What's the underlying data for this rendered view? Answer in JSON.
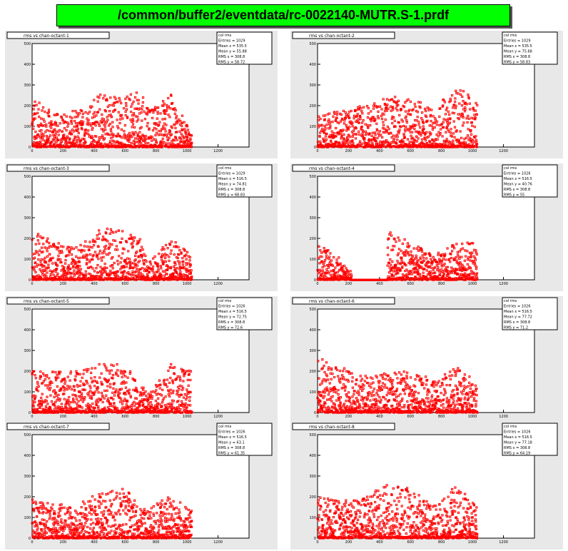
{
  "page": {
    "title": "/common/buffer2/eventdata/rc-0022140-MUTR.S-1.prdf"
  },
  "chart_data": [
    {
      "type": "scatter",
      "title": "rms vs chan-octant-1",
      "xlim": [
        0,
        1400
      ],
      "ylim": [
        0,
        500
      ],
      "x_ticks": [
        0,
        200,
        400,
        600,
        800,
        1000,
        1200
      ],
      "y_ticks": [
        0,
        100,
        200,
        300,
        400,
        500
      ],
      "stats": [
        "col rms",
        "Entries = 1029",
        "Mean x = 535.5",
        "Mean y = 55.88",
        "RMS x = 308.8",
        "RMS y = 58.72"
      ],
      "series": [
        {
          "x_range": [
            0,
            1030
          ],
          "max_y": 340,
          "profile": [
            [
              0,
              240
            ],
            [
              150,
              160
            ],
            [
              300,
              180
            ],
            [
              450,
              280
            ],
            [
              600,
              240
            ],
            [
              700,
              280
            ],
            [
              750,
              180
            ],
            [
              900,
              260
            ],
            [
              1030,
              60
            ]
          ],
          "zero_gaps": []
        }
      ]
    },
    {
      "type": "scatter",
      "title": "rms vs chan-octant-2",
      "xlim": [
        0,
        1400
      ],
      "ylim": [
        0,
        500
      ],
      "x_ticks": [
        0,
        200,
        400,
        600,
        800,
        1000,
        1200
      ],
      "y_ticks": [
        0,
        100,
        200,
        300,
        400,
        500
      ],
      "stats": [
        "col rms",
        "Entries = 1029",
        "Mean x = 535.5",
        "Mean y = 75.68",
        "RMS x = 308.8",
        "RMS y = 58.83"
      ],
      "series": [
        {
          "x_range": [
            0,
            1030
          ],
          "max_y": 335,
          "profile": [
            [
              0,
              160
            ],
            [
              150,
              180
            ],
            [
              300,
              200
            ],
            [
              450,
              250
            ],
            [
              600,
              230
            ],
            [
              750,
              200
            ],
            [
              900,
              280
            ],
            [
              1030,
              250
            ]
          ],
          "zero_gaps": []
        }
      ]
    },
    {
      "type": "scatter",
      "title": "rms vs chan-octant-3",
      "xlim": [
        0,
        1400
      ],
      "ylim": [
        0,
        500
      ],
      "x_ticks": [
        0,
        200,
        400,
        600,
        800,
        1000,
        1200
      ],
      "y_ticks": [
        0,
        100,
        200,
        300,
        400,
        500
      ],
      "stats": [
        "col rms",
        "Entries = 1029",
        "Mean x = 516.5",
        "Mean y = 74.81",
        "RMS x = 308.8",
        "RMS y = 68.83"
      ],
      "series": [
        {
          "x_range": [
            0,
            1030
          ],
          "max_y": 295,
          "profile": [
            [
              0,
              250
            ],
            [
              150,
              180
            ],
            [
              300,
              160
            ],
            [
              450,
              260
            ],
            [
              600,
              240
            ],
            [
              700,
              200
            ],
            [
              750,
              90
            ],
            [
              900,
              200
            ],
            [
              1030,
              120
            ]
          ],
          "zero_gaps": []
        }
      ]
    },
    {
      "type": "scatter",
      "title": "rms vs chan-octant-4",
      "xlim": [
        0,
        1400
      ],
      "ylim": [
        0,
        500
      ],
      "x_ticks": [
        0,
        200,
        400,
        600,
        800,
        1000,
        1200
      ],
      "y_ticks": [
        0,
        100,
        200,
        300,
        400,
        500
      ],
      "stats": [
        "col rms",
        "Entries = 1026",
        "Mean x = 516.5",
        "Mean y = 40.76",
        "RMS x = 308.8",
        "RMS y = 55"
      ],
      "series": [
        {
          "x_range": [
            0,
            1030
          ],
          "max_y": 265,
          "profile": [
            [
              0,
              200
            ],
            [
              150,
              100
            ],
            [
              200,
              40
            ],
            [
              450,
              240
            ],
            [
              600,
              180
            ],
            [
              750,
              120
            ],
            [
              900,
              180
            ],
            [
              1030,
              180
            ]
          ],
          "zero_gaps": [
            [
              220,
              450
            ]
          ]
        }
      ]
    },
    {
      "type": "scatter",
      "title": "rms vs chan-octant-5",
      "xlim": [
        0,
        1400
      ],
      "ylim": [
        0,
        500
      ],
      "x_ticks": [
        0,
        200,
        400,
        600,
        800,
        1000,
        1200
      ],
      "y_ticks": [
        0,
        100,
        200,
        300,
        400,
        500
      ],
      "stats": [
        "col rms",
        "Entries = 1026",
        "Mean x = 516.5",
        "Mean y = 72.75",
        "RMS x = 308.8",
        "RMS y = 72.6"
      ],
      "series": [
        {
          "x_range": [
            0,
            1030
          ],
          "max_y": 280,
          "profile": [
            [
              0,
              200
            ],
            [
              150,
              200
            ],
            [
              300,
              200
            ],
            [
              450,
              240
            ],
            [
              600,
              240
            ],
            [
              750,
              90
            ],
            [
              900,
              240
            ],
            [
              1030,
              200
            ]
          ],
          "zero_gaps": []
        }
      ]
    },
    {
      "type": "scatter",
      "title": "rms vs chan-octant-6",
      "xlim": [
        0,
        1400
      ],
      "ylim": [
        0,
        500
      ],
      "x_ticks": [
        0,
        200,
        400,
        600,
        800,
        1000,
        1200
      ],
      "y_ticks": [
        0,
        100,
        200,
        300,
        400,
        500
      ],
      "stats": [
        "col rms",
        "Entries = 1026",
        "Mean x = 516.5",
        "Mean y = 77.72",
        "RMS x = 308.8",
        "RMS y = 71.2"
      ],
      "series": [
        {
          "x_range": [
            0,
            1030
          ],
          "max_y": 345,
          "profile": [
            [
              0,
              280
            ],
            [
              150,
              220
            ],
            [
              300,
              180
            ],
            [
              450,
              200
            ],
            [
              600,
              200
            ],
            [
              750,
              160
            ],
            [
              900,
              220
            ],
            [
              1030,
              150
            ]
          ],
          "zero_gaps": []
        }
      ]
    },
    {
      "type": "scatter",
      "title": "rms vs chan-octant-7",
      "xlim": [
        0,
        1400
      ],
      "ylim": [
        0,
        500
      ],
      "x_ticks": [
        0,
        200,
        400,
        600,
        800,
        1000,
        1200
      ],
      "y_ticks": [
        0,
        100,
        200,
        300,
        400,
        500
      ],
      "stats": [
        "col rms",
        "Entries = 1026",
        "Mean x = 516.5",
        "Mean y = 63.1",
        "RMS x = 308.8",
        "RMS y = 61.35"
      ],
      "series": [
        {
          "x_range": [
            0,
            1030
          ],
          "max_y": 250,
          "profile": [
            [
              0,
              200
            ],
            [
              150,
              160
            ],
            [
              300,
              180
            ],
            [
              450,
              220
            ],
            [
              600,
              240
            ],
            [
              750,
              140
            ],
            [
              900,
              220
            ],
            [
              1030,
              140
            ]
          ],
          "zero_gaps": []
        }
      ]
    },
    {
      "type": "scatter",
      "title": "rms vs chan-octant-8",
      "xlim": [
        0,
        1400
      ],
      "ylim": [
        0,
        500
      ],
      "x_ticks": [
        0,
        200,
        400,
        600,
        800,
        1000,
        1200
      ],
      "y_ticks": [
        0,
        100,
        200,
        300,
        400,
        500
      ],
      "stats": [
        "col rms",
        "Entries = 1026",
        "Mean x = 516.5",
        "Mean y = 77.18",
        "RMS x = 308.8",
        "RMS y = 64.19"
      ],
      "series": [
        {
          "x_range": [
            0,
            1030
          ],
          "max_y": 355,
          "profile": [
            [
              0,
              200
            ],
            [
              150,
              180
            ],
            [
              300,
              200
            ],
            [
              450,
              260
            ],
            [
              600,
              240
            ],
            [
              750,
              160
            ],
            [
              900,
              260
            ],
            [
              1030,
              150
            ]
          ],
          "zero_gaps": []
        }
      ]
    }
  ],
  "colors": {
    "title_bg": "#00ff00",
    "pad_bg": "#e8e8e8",
    "marker": "#ff0000"
  }
}
